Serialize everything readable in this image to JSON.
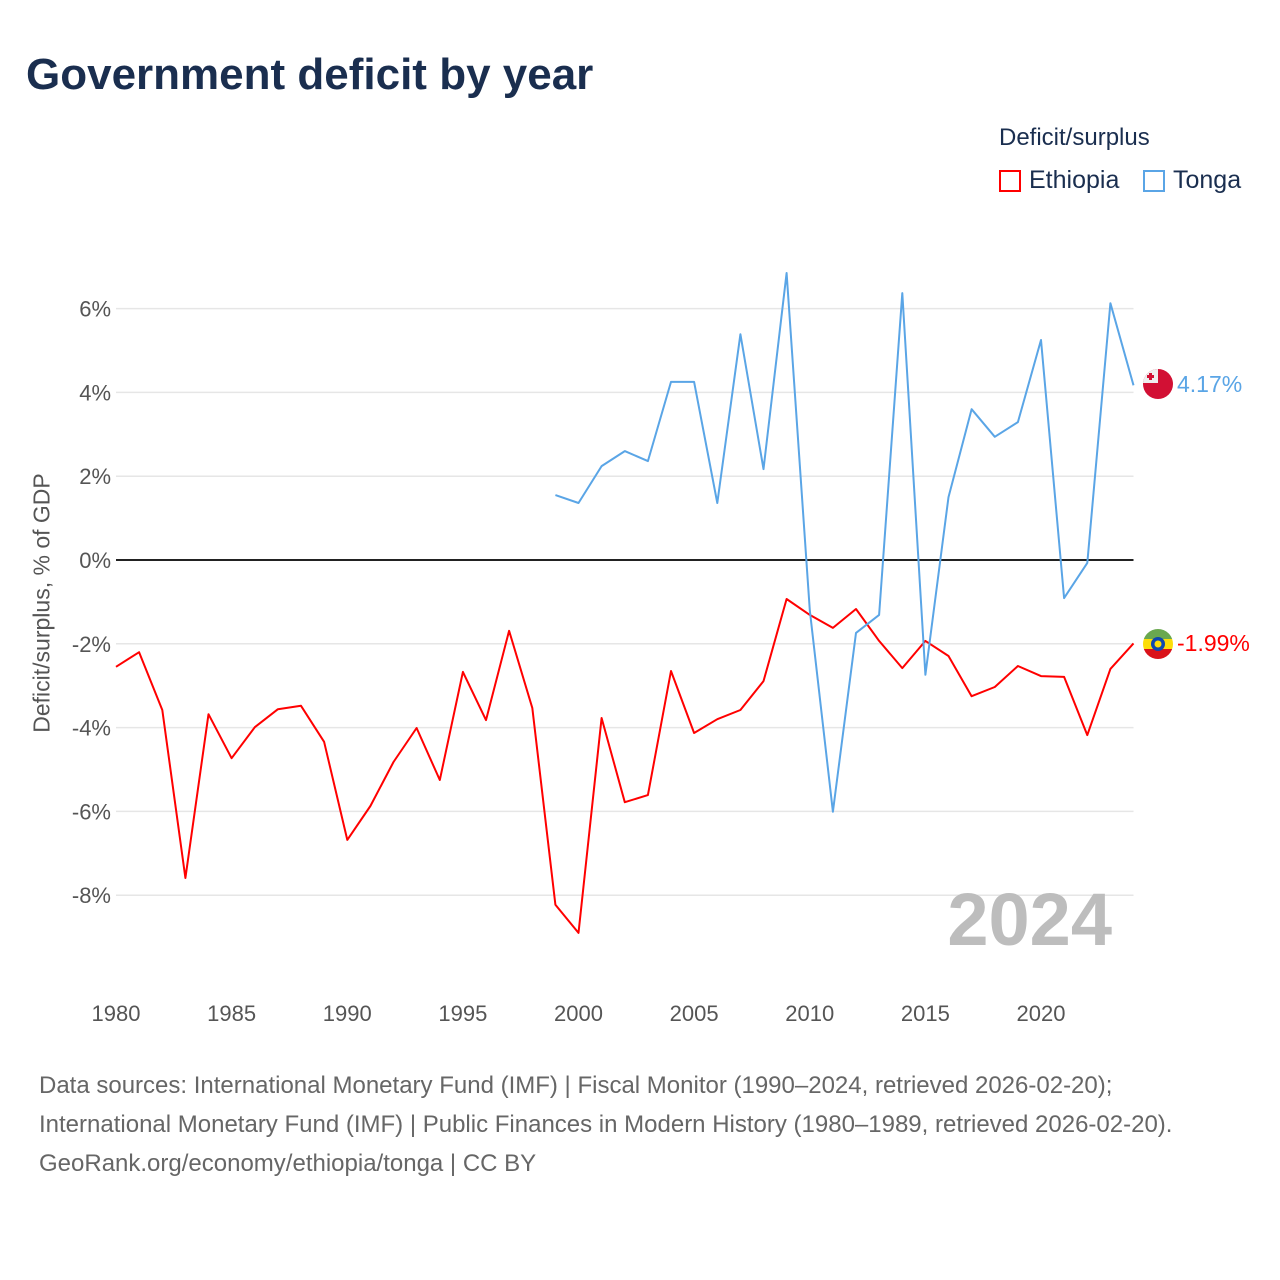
{
  "title": "Government deficit by year",
  "legend": {
    "title": "Deficit/surplus",
    "items": [
      "Ethiopia",
      "Tonga"
    ]
  },
  "year_label": "2024",
  "end_labels": {
    "Ethiopia": "-1.99%",
    "Tonga": "4.17%"
  },
  "footer": {
    "sources": "Data sources: International Monetary Fund (IMF) | Fiscal Monitor (1990–2024, retrieved 2026-02-20); International Monetary Fund (IMF) | Public Finances in Modern History (1980–1989, retrieved 2026-02-20).",
    "credit": "GeoRank.org/economy/ethiopia/tonga | CC BY"
  },
  "colors": {
    "Ethiopia": "#ff0000",
    "Tonga": "#5aa5e6",
    "title": "#1a2e4f"
  },
  "chart_data": {
    "type": "line",
    "title": "Government deficit by year",
    "xlabel": "",
    "ylabel": "Deficit/surplus, % of GDP",
    "xlim": [
      1980,
      2024
    ],
    "ylim": [
      -10,
      7
    ],
    "xticks": [
      1980,
      1985,
      1990,
      1995,
      2000,
      2005,
      2010,
      2015,
      2020
    ],
    "yticks": [
      6,
      4,
      2,
      0,
      -2,
      -4,
      -6,
      -8
    ],
    "ytick_labels": [
      "6%",
      "4%",
      "2%",
      "0%",
      "-2%",
      "-4%",
      "-6%",
      "-8%"
    ],
    "grid": true,
    "legend_position": "top-right",
    "series": [
      {
        "name": "Ethiopia",
        "x_start": 1980,
        "values": [
          -2.55,
          -2.2,
          -3.58,
          -7.59,
          -3.68,
          -4.73,
          -3.99,
          -3.56,
          -3.48,
          -4.34,
          -6.68,
          -5.87,
          -4.82,
          -4.01,
          -5.25,
          -2.67,
          -3.82,
          -1.69,
          -3.53,
          -8.23,
          -8.9,
          -3.77,
          -5.78,
          -5.61,
          -2.65,
          -4.13,
          -3.8,
          -3.58,
          -2.89,
          -0.93,
          -1.31,
          -1.62,
          -1.17,
          -1.93,
          -2.58,
          -1.93,
          -2.29,
          -3.25,
          -3.03,
          -2.53,
          -2.77,
          -2.79,
          -4.18,
          -2.6,
          -1.99
        ]
      },
      {
        "name": "Tonga",
        "x_start": 1999,
        "values": [
          1.55,
          1.36,
          2.24,
          2.6,
          2.36,
          4.25,
          4.25,
          1.36,
          5.39,
          2.17,
          6.85,
          -1.2,
          -6.01,
          -1.74,
          -1.31,
          6.37,
          -2.74,
          1.5,
          3.6,
          2.94,
          3.29,
          5.25,
          -0.91,
          -0.07,
          6.13,
          4.17
        ]
      }
    ]
  }
}
